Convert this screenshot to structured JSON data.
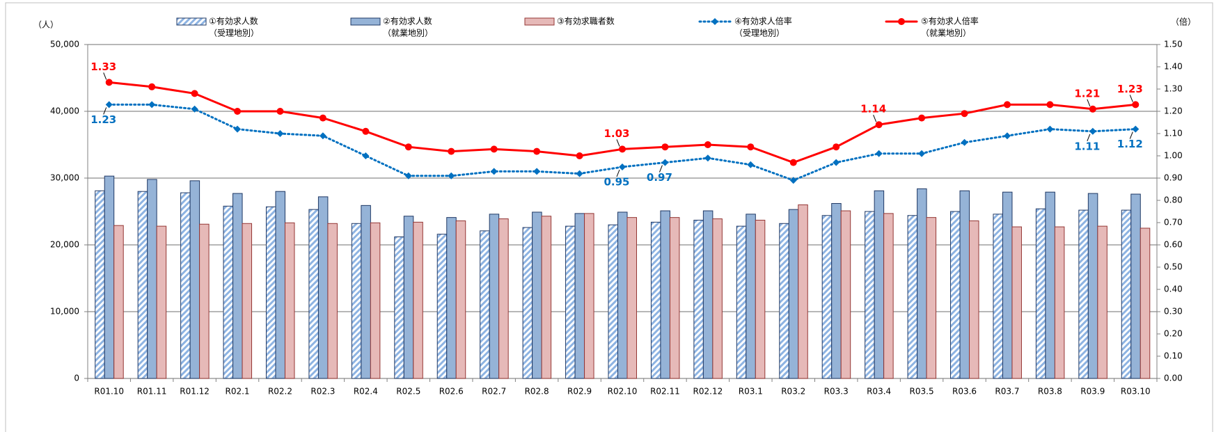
{
  "chart_data": {
    "type": "bar_line",
    "y_unit": "（人）",
    "y2_unit": "（倍）",
    "categories": [
      "R01.10",
      "R01.11",
      "R01.12",
      "R02.1",
      "R02.2",
      "R02.3",
      "R02.4",
      "R02.5",
      "R02.6",
      "R02.7",
      "R02.8",
      "R02.9",
      "R02.10",
      "R02.11",
      "R02.12",
      "R03.1",
      "R03.2",
      "R03.3",
      "R03.4",
      "R03.5",
      "R03.6",
      "R03.7",
      "R03.8",
      "R03.9",
      "R03.10"
    ],
    "ylim": [
      0,
      50000
    ],
    "yticks": [
      0,
      {
        "value": 10000,
        "label": "10,000"
      },
      {
        "value": 20000,
        "label": "20,000"
      },
      {
        "value": 30000,
        "label": "30,000"
      },
      {
        "value": 40000,
        "label": "40,000"
      },
      {
        "value": 50000,
        "label": "50,000"
      }
    ],
    "y2lim": [
      0,
      1.5
    ],
    "y2ticks": [
      {
        "value": 0,
        "label": "0.00"
      },
      {
        "value": 0.1,
        "label": "0.10"
      },
      {
        "value": 0.2,
        "label": "0.20"
      },
      {
        "value": 0.3,
        "label": "0.30"
      },
      {
        "value": 0.4,
        "label": "0.40"
      },
      {
        "value": 0.5,
        "label": "0.50"
      },
      {
        "value": 0.6,
        "label": "0.60"
      },
      {
        "value": 0.7,
        "label": "0.70"
      },
      {
        "value": 0.8,
        "label": "0.80"
      },
      {
        "value": 0.9,
        "label": "0.90"
      },
      {
        "value": 1.0,
        "label": "1.00"
      },
      {
        "value": 1.1,
        "label": "1.10"
      },
      {
        "value": 1.2,
        "label": "1.20"
      },
      {
        "value": 1.3,
        "label": "1.30"
      },
      {
        "value": 1.4,
        "label": "1.40"
      },
      {
        "value": 1.5,
        "label": "1.50"
      }
    ],
    "grid": true,
    "series": [
      {
        "name": "①有効求人数",
        "name_sub": "（受理地別）",
        "kind": "bar",
        "style": "hatched",
        "color": "#8db3e2",
        "edge": "#1f3864",
        "values": [
          28100,
          28000,
          27800,
          25800,
          25700,
          25300,
          23200,
          21200,
          21600,
          22100,
          22600,
          22800,
          23000,
          23400,
          23700,
          22800,
          23200,
          24400,
          25000,
          24400,
          25000,
          24600,
          25400,
          25200,
          25200
        ]
      },
      {
        "name": "②有効求人数",
        "name_sub": "（就業地別）",
        "kind": "bar",
        "style": "solid",
        "color": "#95b3d7",
        "edge": "#1f3864",
        "values": [
          30300,
          29800,
          29600,
          27700,
          28000,
          27200,
          25900,
          24300,
          24100,
          24600,
          24900,
          24700,
          24900,
          25100,
          25100,
          24600,
          25300,
          26200,
          28100,
          28400,
          28100,
          27900,
          27900,
          27700,
          27600
        ]
      },
      {
        "name": "③有効求職者数",
        "kind": "bar",
        "style": "solid",
        "color": "#e6b9b8",
        "edge": "#943634",
        "values": [
          22900,
          22800,
          23100,
          23200,
          23300,
          23200,
          23300,
          23400,
          23600,
          23900,
          24300,
          24700,
          24100,
          24100,
          23900,
          23700,
          26000,
          25100,
          24700,
          24100,
          23600,
          22700,
          22700,
          22800,
          22500
        ]
      },
      {
        "name": "④有効求人倍率",
        "name_sub": "（受理地別）",
        "kind": "line",
        "style": "dotted",
        "axis": "y2",
        "color": "#0070c0",
        "values": [
          1.23,
          1.23,
          1.21,
          1.12,
          1.1,
          1.09,
          1.0,
          0.91,
          0.91,
          0.93,
          0.93,
          0.92,
          0.95,
          0.97,
          0.99,
          0.96,
          0.89,
          0.97,
          1.01,
          1.01,
          1.06,
          1.09,
          1.12,
          1.11,
          1.12
        ],
        "value_labels": [
          "1.23",
          null,
          null,
          null,
          null,
          null,
          null,
          null,
          null,
          null,
          null,
          null,
          "0.95",
          "0.97",
          null,
          null,
          null,
          null,
          null,
          null,
          null,
          null,
          null,
          "1.11",
          "1.12"
        ]
      },
      {
        "name": "⑤有効求人倍率",
        "name_sub": "（就業地別）",
        "kind": "line",
        "style": "solid",
        "axis": "y2",
        "color": "#ff0000",
        "values": [
          1.33,
          1.31,
          1.28,
          1.2,
          1.2,
          1.17,
          1.11,
          1.04,
          1.02,
          1.03,
          1.02,
          1.0,
          1.03,
          1.04,
          1.05,
          1.04,
          0.97,
          1.04,
          1.14,
          1.17,
          1.19,
          1.23,
          1.23,
          1.21,
          1.23
        ],
        "value_labels": [
          "1.33",
          null,
          null,
          null,
          null,
          null,
          null,
          null,
          null,
          null,
          null,
          null,
          "1.03",
          null,
          null,
          null,
          null,
          null,
          "1.14",
          null,
          null,
          null,
          null,
          "1.21",
          "1.23"
        ]
      }
    ]
  }
}
